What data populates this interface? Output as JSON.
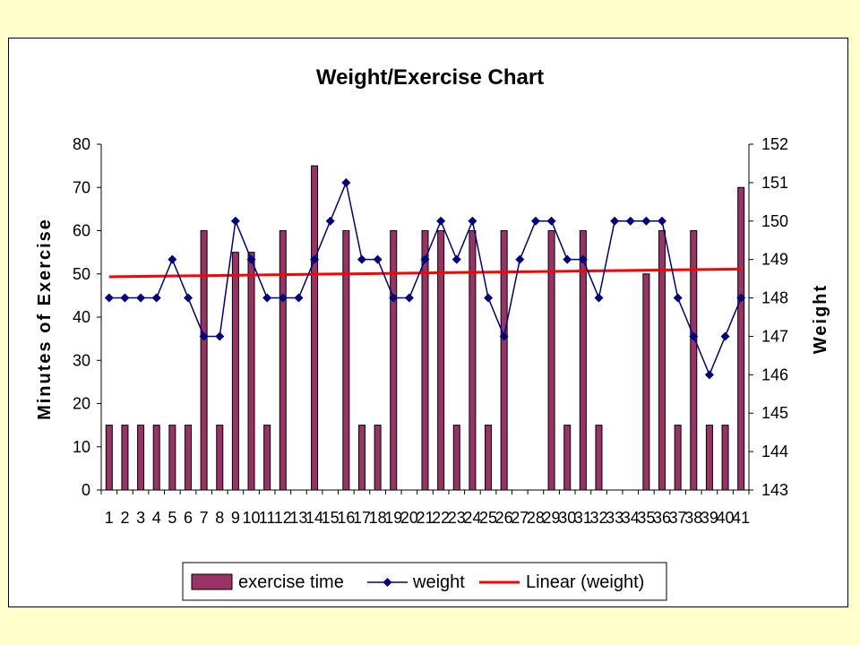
{
  "chart_data": {
    "type": "bar",
    "title": "Weight/Exercise Chart",
    "ylabel": "Minutes of Exercise",
    "y2label": "Weight",
    "ylim": [
      0,
      80
    ],
    "y2lim": [
      143,
      152
    ],
    "yticks": [
      0,
      10,
      20,
      30,
      40,
      50,
      60,
      70,
      80
    ],
    "y2ticks": [
      143,
      144,
      145,
      146,
      147,
      148,
      149,
      150,
      151,
      152
    ],
    "categories": [
      "1",
      "2",
      "3",
      "4",
      "5",
      "6",
      "7",
      "8",
      "9",
      "10",
      "11",
      "12",
      "13",
      "14",
      "15",
      "16",
      "17",
      "18",
      "19",
      "20",
      "21",
      "22",
      "23",
      "24",
      "25",
      "26",
      "27",
      "28",
      "29",
      "30",
      "31",
      "32",
      "33",
      "34",
      "35",
      "36",
      "37",
      "38",
      "39",
      "40",
      "41"
    ],
    "series": [
      {
        "name": "exercise time",
        "type": "bar",
        "axis": "left",
        "color": "#993366",
        "values": [
          15,
          15,
          15,
          15,
          15,
          15,
          60,
          15,
          55,
          55,
          15,
          60,
          0,
          75,
          0,
          60,
          15,
          15,
          60,
          0,
          60,
          60,
          15,
          60,
          15,
          60,
          0,
          0,
          60,
          15,
          60,
          15,
          0,
          0,
          50,
          60,
          15,
          60,
          15,
          15,
          70
        ]
      },
      {
        "name": "weight",
        "type": "line",
        "axis": "right",
        "color": "#000080",
        "marker": "diamond",
        "values": [
          148,
          148,
          148,
          148,
          149,
          148,
          147,
          147,
          150,
          149,
          148,
          148,
          148,
          149,
          150,
          151,
          149,
          149,
          148,
          148,
          149,
          150,
          149,
          150,
          148,
          147,
          149,
          150,
          150,
          149,
          149,
          148,
          150,
          150,
          150,
          150,
          148,
          147,
          146,
          147,
          148
        ]
      },
      {
        "name": "Linear (weight)",
        "type": "trendline",
        "axis": "right",
        "color": "#ff0000",
        "start": 148.55,
        "end": 148.75
      }
    ],
    "legend": "bottom",
    "grid": false
  }
}
